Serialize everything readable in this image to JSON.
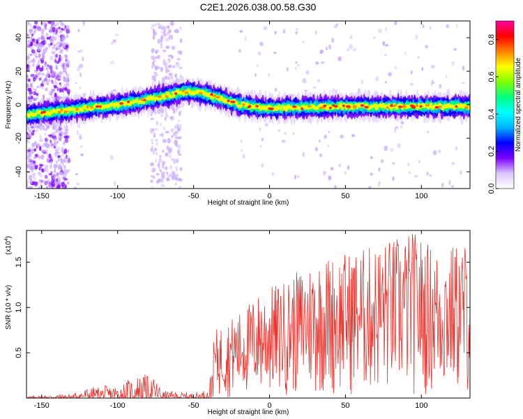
{
  "title": "C2E1.2026.038.00.58.G30",
  "chart_data": [
    {
      "type": "heatmap",
      "xlabel": "Height of straight line (km)",
      "ylabel": "Frequency (Hz)",
      "xlim": [
        -160,
        132
      ],
      "ylim": [
        -50,
        50
      ],
      "xticks": [
        -150,
        -100,
        -50,
        0,
        50,
        100
      ],
      "yticks": [
        -40,
        -20,
        0,
        20,
        40
      ],
      "colorbar": {
        "label": "Normalized spectral amplitude",
        "range": [
          0.0,
          0.9
        ],
        "ticks": [
          "0.0",
          "0.2",
          "0.4",
          "0.6",
          "0.8"
        ],
        "colors": [
          "#ffffff",
          "#dcc6ff",
          "#7a00ff",
          "#0000ff",
          "#00b4ff",
          "#00ffff",
          "#00ff80",
          "#80ff00",
          "#ffff00",
          "#ff8000",
          "#ff0000",
          "#ff00a0"
        ]
      },
      "ridge": [
        {
          "x": -160,
          "f": -6
        },
        {
          "x": -130,
          "f": -3
        },
        {
          "x": -100,
          "f": 0
        },
        {
          "x": -75,
          "f": 4
        },
        {
          "x": -55,
          "f": 8
        },
        {
          "x": -40,
          "f": 6
        },
        {
          "x": -30,
          "f": 3
        },
        {
          "x": -20,
          "f": 0
        },
        {
          "x": 0,
          "f": -2
        },
        {
          "x": 50,
          "f": -1
        },
        {
          "x": 100,
          "f": -1
        },
        {
          "x": 132,
          "f": -1
        }
      ]
    },
    {
      "type": "line",
      "xlabel": "Height of straight line (km)",
      "ylabel": "SNR (10 * v/v)",
      "yscale_label": "(x10",
      "yscale_exp": "4",
      "xlim": [
        -160,
        132
      ],
      "ylim": [
        0,
        1.85
      ],
      "xticks": [
        -150,
        -100,
        -50,
        0,
        50,
        100
      ],
      "yticks": [
        0.5,
        1.0,
        1.5
      ],
      "ytick_labels": [
        "0.5",
        "1.0",
        "1.5"
      ],
      "color": "#e8302a",
      "envelope": [
        {
          "x": -160,
          "max": 0.02
        },
        {
          "x": -130,
          "max": 0.05
        },
        {
          "x": -120,
          "max": 0.12
        },
        {
          "x": -100,
          "max": 0.15
        },
        {
          "x": -85,
          "max": 0.28
        },
        {
          "x": -75,
          "max": 0.22
        },
        {
          "x": -70,
          "max": 0.08
        },
        {
          "x": -50,
          "max": 0.06
        },
        {
          "x": -40,
          "max": 0.1
        },
        {
          "x": -36,
          "max": 0.75
        },
        {
          "x": -20,
          "max": 0.95
        },
        {
          "x": -5,
          "max": 1.2
        },
        {
          "x": 10,
          "max": 1.3
        },
        {
          "x": 30,
          "max": 1.55
        },
        {
          "x": 60,
          "max": 1.65
        },
        {
          "x": 95,
          "max": 1.85
        },
        {
          "x": 110,
          "max": 1.65
        },
        {
          "x": 132,
          "max": 1.75
        }
      ]
    }
  ]
}
